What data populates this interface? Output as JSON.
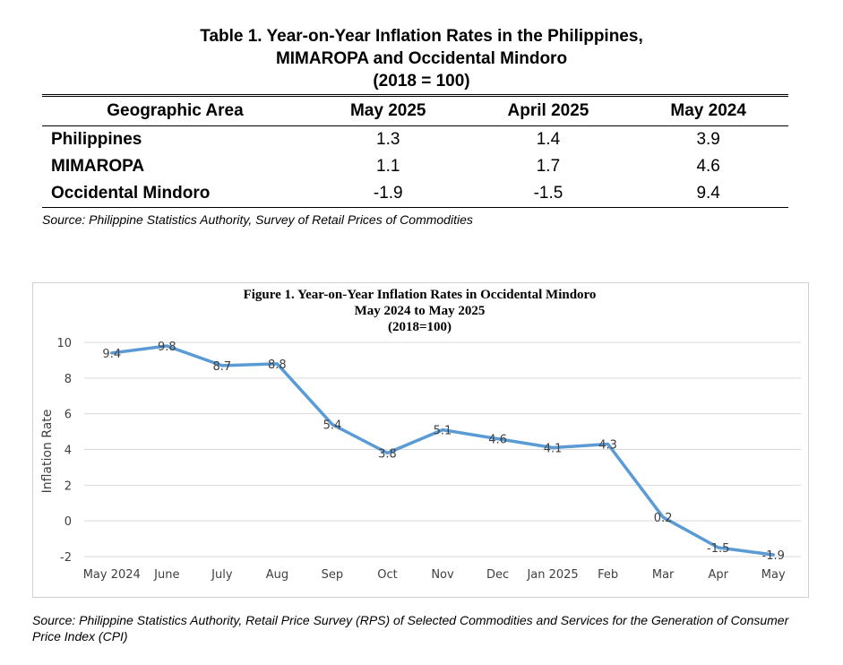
{
  "table": {
    "title_line1": "Table 1. Year-on-Year Inflation Rates in the Philippines,",
    "title_line2": "MIMAROPA and Occidental Mindoro",
    "title_line3": "(2018 = 100)",
    "headers": [
      "Geographic Area",
      "May 2025",
      "April 2025",
      "May 2024"
    ],
    "rows": [
      [
        "Philippines",
        "1.3",
        "1.4",
        "3.9"
      ],
      [
        "MIMAROPA",
        "1.1",
        "1.7",
        "4.6"
      ],
      [
        "Occidental Mindoro",
        "-1.9",
        "-1.5",
        "9.4"
      ]
    ],
    "source": "Source: Philippine Statistics Authority, Survey of Retail Prices of Commodities"
  },
  "chart_data": {
    "type": "line",
    "title_line1": "Figure 1. Year-on-Year Inflation Rates in Occidental Mindoro",
    "title_line2": "May 2024 to May 2025",
    "title_line3": "(2018=100)",
    "ylabel": "Inflation Rate",
    "xlabel": "",
    "categories": [
      "May 2024",
      "June",
      "July",
      "Aug",
      "Sep",
      "Oct",
      "Nov",
      "Dec",
      "Jan 2025",
      "Feb",
      "Mar",
      "Apr",
      "May"
    ],
    "values": [
      9.4,
      9.8,
      8.7,
      8.8,
      5.4,
      3.8,
      5.1,
      4.6,
      4.1,
      4.3,
      0.2,
      -1.5,
      -1.9
    ],
    "data_labels": [
      "9.4",
      "9.8",
      "8.7",
      "8.8",
      "5.4",
      "3.8",
      "5.1",
      "4.6",
      "4.1",
      "4.3",
      "0.2",
      "-1.5",
      "-1.9"
    ],
    "yticks": [
      -2,
      0,
      2,
      4,
      6,
      8,
      10
    ],
    "ylim": [
      -2,
      10
    ],
    "grid": true,
    "legend": "none",
    "line_color": "#5b9bd5",
    "grid_color": "#d9d9d9"
  },
  "figure_source": "Source: Philippine Statistics Authority, Retail Price Survey (RPS) of Selected Commodities and Services for the Generation of Consumer Price Index (CPI)"
}
